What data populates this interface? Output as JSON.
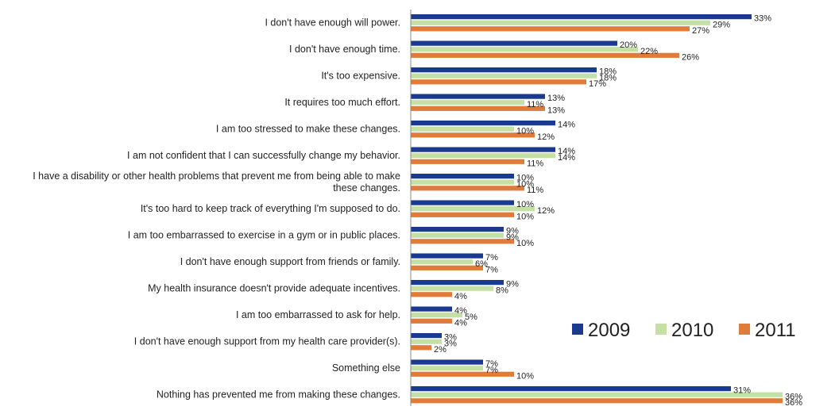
{
  "chart_data": {
    "type": "bar",
    "orientation": "horizontal",
    "title": "",
    "xlabel": "",
    "ylabel": "",
    "xlim": [
      0,
      36
    ],
    "grid": false,
    "legend_position": "right-lower",
    "categories": [
      [
        "I don't have enough will power."
      ],
      [
        "I don't have enough time."
      ],
      [
        "It's too expensive."
      ],
      [
        "It requires too much effort."
      ],
      [
        "I am too stressed to make these changes."
      ],
      [
        "I am not confident that I can successfully change my behavior."
      ],
      [
        "I have a disability or other health problems that prevent me from being able to make",
        "these changes."
      ],
      [
        "It's too hard to keep track of everything I'm supposed to do."
      ],
      [
        "I am too embarrassed to exercise in a gym or in public places."
      ],
      [
        "I don't have enough support from friends or family."
      ],
      [
        "My health insurance doesn't provide adequate incentives."
      ],
      [
        "I am too embarrassed to ask for help."
      ],
      [
        "I don't have enough support from my health care provider(s)."
      ],
      [
        "Something else"
      ],
      [
        "Nothing has prevented me from making these changes."
      ]
    ],
    "series": [
      {
        "name": "2009",
        "color": "#1a3a8f",
        "values": [
          33,
          20,
          18,
          13,
          14,
          14,
          10,
          10,
          9,
          7,
          9,
          4,
          3,
          7,
          31
        ]
      },
      {
        "name": "2010",
        "color": "#c5e0a5",
        "values": [
          29,
          22,
          18,
          11,
          10,
          14,
          10,
          12,
          9,
          6,
          8,
          5,
          3,
          7,
          36
        ]
      },
      {
        "name": "2011",
        "color": "#e07b39",
        "values": [
          27,
          26,
          17,
          13,
          12,
          11,
          11,
          10,
          10,
          7,
          4,
          4,
          2,
          10,
          36
        ]
      }
    ],
    "value_suffix": "%"
  }
}
